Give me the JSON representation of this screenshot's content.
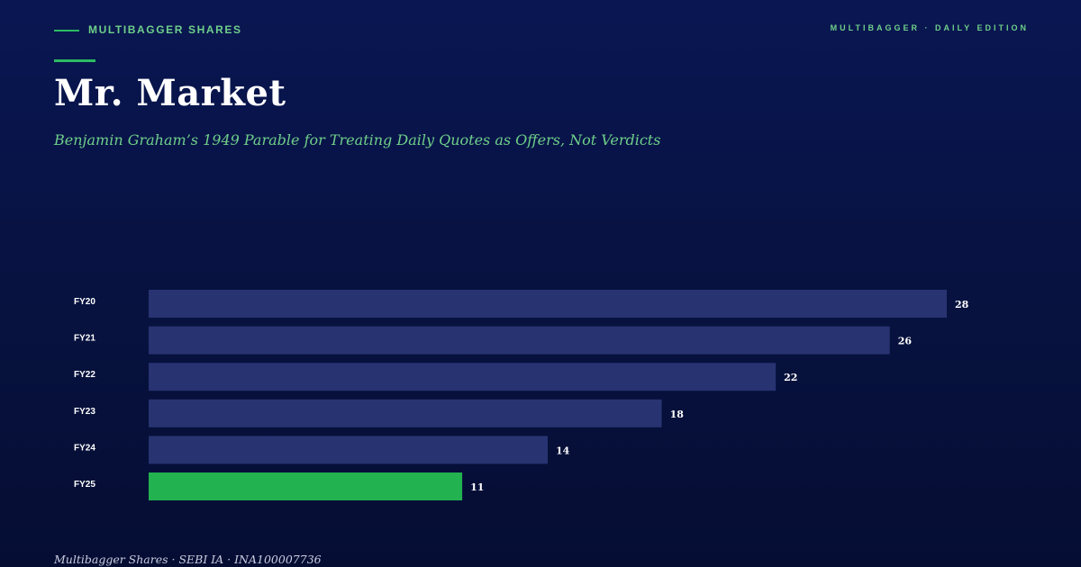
{
  "header": {
    "brand": "MULTIBAGGER SHARES",
    "edition": "MULTIBAGGER · DAILY EDITION",
    "title": "Mr. Market",
    "subtitle": "Benjamin Graham’s 1949 Parable for Treating Daily Quotes as Offers, Not Verdicts"
  },
  "footer": {
    "text": "Multibagger Shares · SEBI IA · INA100007736"
  },
  "colors": {
    "background": "#07123f",
    "accent": "#2dbb63",
    "bar_default": "#283372",
    "bar_highlight": "#22b24f",
    "label": "#ffffff"
  },
  "chart_data": {
    "type": "bar",
    "orientation": "horizontal",
    "categories": [
      "FY20",
      "FY21",
      "FY22",
      "FY23",
      "FY24",
      "FY25"
    ],
    "values": [
      28,
      26,
      22,
      18,
      14,
      11
    ],
    "highlight_category": "FY25",
    "xlim": [
      0,
      28
    ],
    "grid": false,
    "legend": "none"
  }
}
